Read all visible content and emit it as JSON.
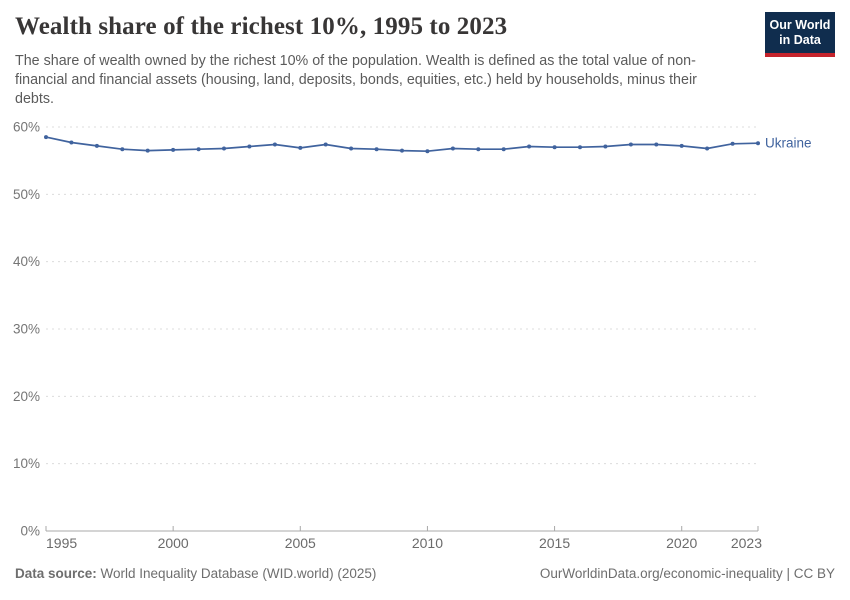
{
  "header": {
    "title": "Wealth share of the richest 10%, 1995 to 2023",
    "subtitle": "The share of wealth owned by the richest 10% of the population. Wealth is defined as the total value of non-financial and financial assets (housing, land, deposits, bonds, equities, etc.) held by households, minus their debts.",
    "logo": {
      "line1": "Our World",
      "line2": "in Data",
      "background": "#102d4e",
      "accent": "#c5242c"
    }
  },
  "chart_data": {
    "type": "line",
    "title": "Wealth share of the richest 10%, 1995 to 2023",
    "xlabel": "",
    "ylabel": "",
    "ylim": [
      0,
      60
    ],
    "grid": "horizontal-dashed",
    "legend_position": "end-of-line-label",
    "x": [
      1995,
      1996,
      1997,
      1998,
      1999,
      2000,
      2001,
      2002,
      2003,
      2004,
      2005,
      2006,
      2007,
      2008,
      2009,
      2010,
      2011,
      2012,
      2013,
      2014,
      2015,
      2016,
      2017,
      2018,
      2019,
      2020,
      2021,
      2022,
      2023
    ],
    "series": [
      {
        "name": "Ukraine",
        "color": "#40639e",
        "values": [
          58.5,
          57.7,
          57.2,
          56.7,
          56.5,
          56.6,
          56.7,
          56.8,
          57.1,
          57.4,
          56.9,
          57.4,
          56.8,
          56.7,
          56.5,
          56.4,
          56.8,
          56.7,
          56.7,
          57.1,
          57.0,
          57.0,
          57.1,
          57.4,
          57.4,
          57.2,
          56.8,
          57.5,
          57.6
        ]
      }
    ],
    "yticks": [
      {
        "value": 0,
        "label": "0%"
      },
      {
        "value": 10,
        "label": "10%"
      },
      {
        "value": 20,
        "label": "20%"
      },
      {
        "value": 30,
        "label": "30%"
      },
      {
        "value": 40,
        "label": "40%"
      },
      {
        "value": 50,
        "label": "50%"
      },
      {
        "value": 60,
        "label": "60%"
      }
    ],
    "xticks": [
      {
        "value": 1995,
        "label": "1995"
      },
      {
        "value": 2000,
        "label": "2000"
      },
      {
        "value": 2005,
        "label": "2005"
      },
      {
        "value": 2010,
        "label": "2010"
      },
      {
        "value": 2015,
        "label": "2015"
      },
      {
        "value": 2020,
        "label": "2020"
      },
      {
        "value": 2023,
        "label": "2023"
      }
    ],
    "colors": {
      "gridline": "#dcdcdc",
      "axis": "#a8a8a8",
      "y_tick_label": "#757575",
      "x_tick_label": "#6b6b6b"
    }
  },
  "footer": {
    "source_label": "Data source:",
    "source_value": " World Inequality Database (WID.world) (2025)",
    "credit": "OurWorldinData.org/economic-inequality | CC BY"
  }
}
